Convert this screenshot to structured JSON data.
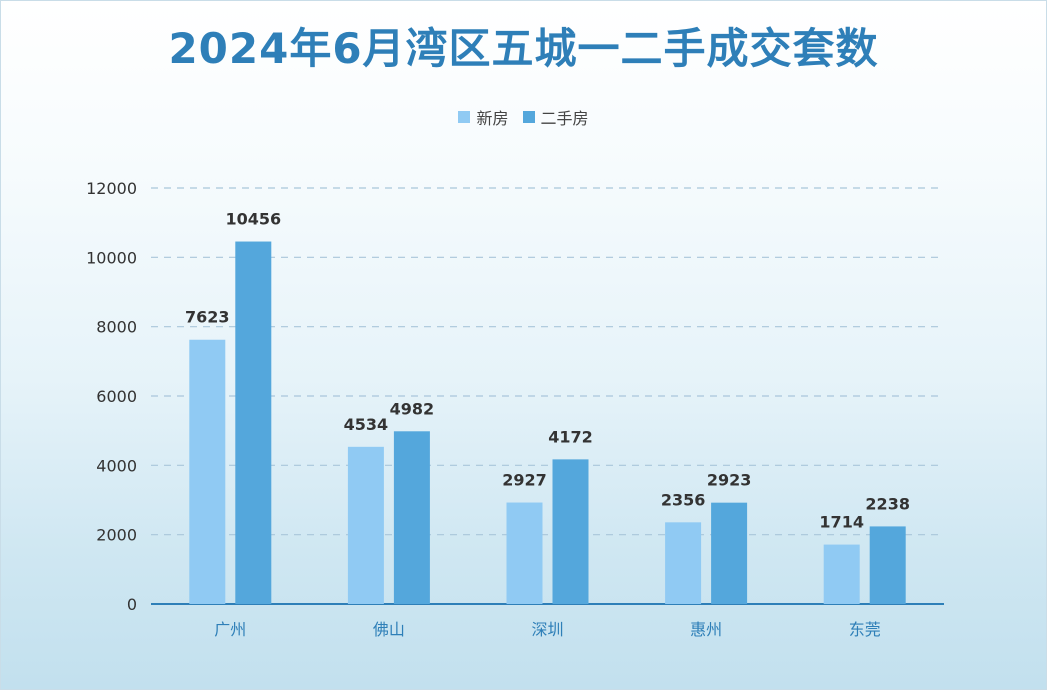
{
  "chart_data": {
    "type": "bar",
    "title": "2024年6月湾区五城一二手成交套数",
    "categories": [
      "广州",
      "佛山",
      "深圳",
      "惠州",
      "东莞"
    ],
    "series": [
      {
        "name": "新房",
        "color": "#90caf3",
        "values": [
          7623,
          4534,
          2927,
          2356,
          1714
        ]
      },
      {
        "name": "二手房",
        "color": "#54a7dc",
        "values": [
          10456,
          4982,
          4172,
          2923,
          2238
        ]
      }
    ],
    "ylim": [
      0,
      12000
    ],
    "yticks": [
      0,
      2000,
      4000,
      6000,
      8000,
      10000,
      12000
    ],
    "grid": true,
    "legend_position": "top"
  }
}
